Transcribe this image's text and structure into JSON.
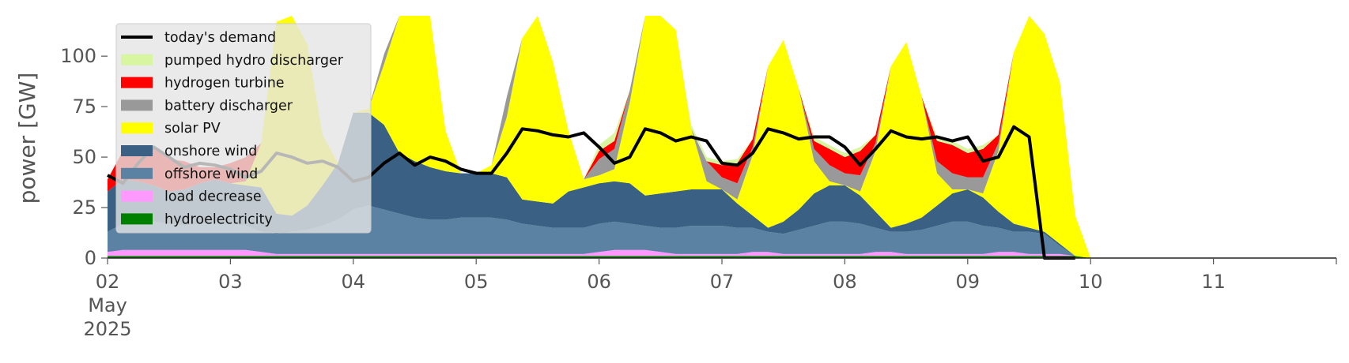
{
  "chart_data": {
    "type": "area",
    "ylabel": "power [GW]",
    "ylim": [
      0,
      120
    ],
    "x_range_days": [
      "2025-05-02",
      "2025-05-12"
    ],
    "y_ticks": [
      0,
      25,
      50,
      75,
      100
    ],
    "x_ticks": [
      {
        "date": "2025-05-02",
        "label": "02",
        "label2": "May",
        "label3": "2025"
      },
      {
        "date": "2025-05-03",
        "label": "03"
      },
      {
        "date": "2025-05-04",
        "label": "04"
      },
      {
        "date": "2025-05-05",
        "label": "05"
      },
      {
        "date": "2025-05-06",
        "label": "06"
      },
      {
        "date": "2025-05-07",
        "label": "07"
      },
      {
        "date": "2025-05-08",
        "label": "08"
      },
      {
        "date": "2025-05-09",
        "label": "09"
      },
      {
        "date": "2025-05-10",
        "label": "10"
      },
      {
        "date": "2025-05-11",
        "label": "11"
      }
    ],
    "grid": false,
    "legend_position": "top-left",
    "legend": [
      {
        "name": "today's demand",
        "color": "#000000",
        "kind": "line"
      },
      {
        "name": "pumped hydro discharger",
        "color": "#d8f5a2",
        "kind": "patch"
      },
      {
        "name": "hydrogen turbine",
        "color": "#ff0000",
        "kind": "patch"
      },
      {
        "name": "battery discharger",
        "color": "#999999",
        "kind": "patch"
      },
      {
        "name": "solar PV",
        "color": "#ffff00",
        "kind": "patch"
      },
      {
        "name": "onshore wind",
        "color": "#3a6183",
        "kind": "patch"
      },
      {
        "name": "offshore wind",
        "color": "#5b81a3",
        "kind": "patch"
      },
      {
        "name": "load decrease",
        "color": "#ff99ff",
        "kind": "patch"
      },
      {
        "name": "hydroelectricity",
        "color": "#008000",
        "kind": "patch"
      }
    ],
    "day_offset_hours": [
      0,
      3,
      6,
      9,
      12,
      15,
      18,
      21
    ],
    "stack_order": [
      "hydroelectricity",
      "load decrease",
      "offshore wind",
      "onshore wind",
      "solar PV",
      "battery discharger",
      "hydrogen turbine",
      "pumped hydro discharger"
    ],
    "days": [
      {
        "date": "2025-05-02",
        "hydroelectricity": [
          1,
          1,
          1,
          1,
          1,
          1,
          1,
          1
        ],
        "load decrease": [
          2,
          3,
          3,
          3,
          3,
          3,
          3,
          3
        ],
        "offshore wind": [
          10,
          13,
          14,
          14,
          13,
          12,
          13,
          14
        ],
        "onshore wind": [
          20,
          22,
          20,
          18,
          16,
          18,
          20,
          21
        ],
        "solar PV": [
          0,
          0,
          0,
          0,
          0,
          0,
          0,
          0
        ],
        "battery discharger": [
          0,
          0,
          0,
          0,
          0,
          0,
          0,
          0
        ],
        "hydrogen turbine": [
          6,
          14,
          18,
          18,
          16,
          14,
          8,
          6
        ],
        "pumped hydro discharger": [
          0,
          0,
          0,
          0,
          0,
          0,
          0,
          0
        ],
        "demand": [
          41,
          37,
          47,
          55,
          50,
          45,
          47,
          46
        ]
      },
      {
        "date": "2025-05-03",
        "hydroelectricity": [
          1,
          1,
          1,
          1,
          1,
          1,
          1,
          1
        ],
        "load decrease": [
          3,
          3,
          2,
          1,
          1,
          1,
          1,
          1
        ],
        "offshore wind": [
          13,
          12,
          10,
          10,
          11,
          12,
          14,
          17
        ],
        "onshore wind": [
          20,
          20,
          22,
          10,
          8,
          12,
          20,
          28
        ],
        "solar PV": [
          0,
          2,
          22,
          95,
          110,
          80,
          25,
          0
        ],
        "battery discharger": [
          0,
          0,
          0,
          0,
          0,
          0,
          0,
          0
        ],
        "hydrogen turbine": [
          10,
          12,
          0,
          0,
          0,
          0,
          0,
          0
        ],
        "pumped hydro discharger": [
          0,
          0,
          0,
          0,
          0,
          0,
          0,
          0
        ],
        "demand": [
          44,
          40,
          43,
          52,
          50,
          47,
          48,
          45
        ]
      },
      {
        "date": "2025-05-04",
        "hydroelectricity": [
          1,
          1,
          1,
          1,
          1,
          1,
          1,
          1
        ],
        "load decrease": [
          1,
          1,
          1,
          1,
          1,
          1,
          1,
          1
        ],
        "offshore wind": [
          22,
          24,
          22,
          20,
          18,
          17,
          17,
          18
        ],
        "onshore wind": [
          48,
          46,
          42,
          30,
          28,
          26,
          24,
          22
        ],
        "solar PV": [
          0,
          2,
          30,
          95,
          120,
          90,
          20,
          0
        ],
        "battery discharger": [
          0,
          0,
          5,
          0,
          0,
          0,
          0,
          0
        ],
        "hydrogen turbine": [
          0,
          0,
          0,
          0,
          0,
          0,
          0,
          0
        ],
        "pumped hydro discharger": [
          0,
          0,
          0,
          0,
          0,
          0,
          0,
          0
        ],
        "demand": [
          38,
          40,
          47,
          52,
          46,
          50,
          48,
          44
        ]
      },
      {
        "date": "2025-05-05",
        "hydroelectricity": [
          1,
          1,
          1,
          1,
          1,
          1,
          1,
          1
        ],
        "load decrease": [
          1,
          1,
          1,
          1,
          1,
          1,
          1,
          1
        ],
        "offshore wind": [
          18,
          18,
          17,
          15,
          14,
          13,
          13,
          13
        ],
        "onshore wind": [
          22,
          22,
          21,
          12,
          12,
          12,
          18,
          20
        ],
        "solar PV": [
          0,
          4,
          30,
          80,
          95,
          70,
          30,
          4
        ],
        "battery discharger": [
          0,
          0,
          10,
          0,
          0,
          0,
          0,
          0
        ],
        "hydrogen turbine": [
          0,
          0,
          0,
          0,
          0,
          0,
          0,
          0
        ],
        "pumped hydro discharger": [
          0,
          0,
          0,
          0,
          0,
          0,
          0,
          0
        ],
        "demand": [
          42,
          42,
          52,
          64,
          63,
          61,
          60,
          62
        ]
      },
      {
        "date": "2025-05-06",
        "hydroelectricity": [
          1,
          1,
          1,
          1,
          1,
          1,
          1,
          1
        ],
        "load decrease": [
          2,
          3,
          3,
          3,
          2,
          1,
          1,
          1
        ],
        "offshore wind": [
          14,
          14,
          13,
          12,
          12,
          13,
          14,
          14
        ],
        "onshore wind": [
          20,
          20,
          20,
          15,
          17,
          18,
          18,
          18
        ],
        "solar PV": [
          4,
          6,
          40,
          100,
          110,
          80,
          30,
          4
        ],
        "battery discharger": [
          8,
          10,
          6,
          0,
          0,
          0,
          0,
          10
        ],
        "hydrogen turbine": [
          4,
          4,
          0,
          0,
          0,
          0,
          0,
          0
        ],
        "pumped hydro discharger": [
          3,
          4,
          0,
          0,
          0,
          0,
          2,
          2
        ],
        "demand": [
          55,
          47,
          50,
          64,
          62,
          58,
          60,
          58
        ]
      },
      {
        "date": "2025-05-07",
        "hydroelectricity": [
          1,
          1,
          1,
          1,
          1,
          1,
          1,
          1
        ],
        "load decrease": [
          1,
          1,
          2,
          2,
          1,
          1,
          1,
          1
        ],
        "offshore wind": [
          14,
          13,
          12,
          10,
          10,
          12,
          14,
          16
        ],
        "onshore wind": [
          18,
          12,
          6,
          2,
          6,
          10,
          16,
          18
        ],
        "solar PV": [
          0,
          2,
          30,
          80,
          90,
          60,
          16,
          2
        ],
        "battery discharger": [
          6,
          8,
          4,
          0,
          0,
          0,
          6,
          8
        ],
        "hydrogen turbine": [
          6,
          10,
          4,
          0,
          0,
          0,
          4,
          8
        ],
        "pumped hydro discharger": [
          2,
          2,
          0,
          0,
          0,
          0,
          2,
          2
        ],
        "demand": [
          47,
          46,
          52,
          64,
          62,
          59,
          60,
          60
        ]
      },
      {
        "date": "2025-05-08",
        "hydroelectricity": [
          1,
          1,
          1,
          1,
          1,
          1,
          1,
          1
        ],
        "load decrease": [
          1,
          1,
          2,
          2,
          1,
          1,
          1,
          1
        ],
        "offshore wind": [
          16,
          15,
          12,
          10,
          11,
          12,
          14,
          16
        ],
        "onshore wind": [
          18,
          14,
          8,
          2,
          4,
          6,
          10,
          14
        ],
        "solar PV": [
          0,
          2,
          30,
          80,
          90,
          60,
          16,
          2
        ],
        "battery discharger": [
          6,
          8,
          4,
          0,
          0,
          0,
          6,
          8
        ],
        "hydrogen turbine": [
          8,
          12,
          4,
          0,
          0,
          0,
          10,
          14
        ],
        "pumped hydro discharger": [
          2,
          2,
          0,
          0,
          0,
          0,
          2,
          2
        ],
        "demand": [
          55,
          46,
          54,
          63,
          60,
          59,
          60,
          58
        ]
      },
      {
        "date": "2025-05-09",
        "hydroelectricity": [
          1,
          1,
          1,
          1,
          1,
          1,
          1,
          1
        ],
        "load decrease": [
          1,
          1,
          2,
          2,
          1,
          1,
          1,
          0
        ],
        "offshore wind": [
          16,
          14,
          12,
          10,
          11,
          10,
          4,
          0
        ],
        "onshore wind": [
          16,
          14,
          8,
          4,
          2,
          1,
          1,
          0
        ],
        "solar PV": [
          0,
          2,
          30,
          85,
          118,
          98,
          80,
          20
        ],
        "battery discharger": [
          6,
          8,
          4,
          0,
          0,
          0,
          0,
          0
        ],
        "hydrogen turbine": [
          12,
          14,
          4,
          0,
          0,
          0,
          0,
          0
        ],
        "pumped hydro discharger": [
          2,
          2,
          0,
          0,
          0,
          0,
          0,
          0
        ],
        "demand": [
          60,
          48,
          50,
          65,
          60,
          0,
          0,
          0
        ]
      }
    ]
  }
}
